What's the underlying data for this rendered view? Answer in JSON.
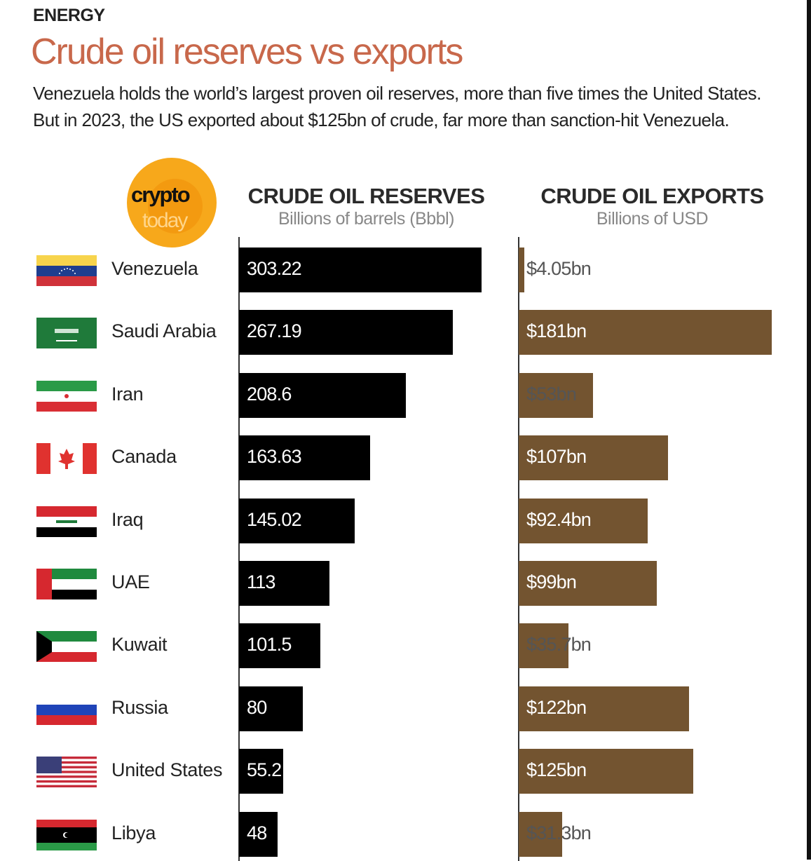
{
  "kicker": "ENERGY",
  "title": "Crude oil reserves vs exports",
  "subtitle": "Venezuela holds the world’s largest proven oil reserves, more than five times the United States. But in 2023, the US exported about $125bn of crude, far more than sanction-hit Venezuela.",
  "logo": {
    "line1": "crypto",
    "line2": "today"
  },
  "colors": {
    "title": "#c8684b",
    "reserves_bar": "#000000",
    "exports_bar": "#735430",
    "logo": "#f7a81b"
  },
  "chart_data": [
    {
      "type": "bar",
      "orientation": "horizontal",
      "title": "CRUDE OIL RESERVES",
      "unit": "Billions of barrels (Bbbl)",
      "categories": [
        "Venezuela",
        "Saudi Arabia",
        "Iran",
        "Canada",
        "Iraq",
        "UAE",
        "Kuwait",
        "Russia",
        "United States",
        "Libya"
      ],
      "values": [
        303.22,
        267.19,
        208.6,
        163.63,
        145.02,
        113,
        101.5,
        80,
        55.2,
        48
      ],
      "labels": [
        "303.22",
        "267.19",
        "208.6",
        "163.63",
        "145.02",
        "113",
        "101.5",
        "80",
        "55.2",
        "48"
      ]
    },
    {
      "type": "bar",
      "orientation": "horizontal",
      "title": "CRUDE OIL EXPORTS",
      "unit": "Billions of USD",
      "categories": [
        "Venezuela",
        "Saudi Arabia",
        "Iran",
        "Canada",
        "Iraq",
        "UAE",
        "Kuwait",
        "Russia",
        "United States",
        "Libya"
      ],
      "values": [
        4.05,
        181,
        53,
        107,
        92.4,
        99,
        35.7,
        122,
        125,
        31.3
      ],
      "labels": [
        "$4.05bn",
        "$181bn",
        "$53bn",
        "$107bn",
        "$92.4bn",
        "$99bn",
        "$35.7bn",
        "$122bn",
        "$125bn",
        "$31.3bn"
      ]
    }
  ],
  "flags": [
    "venezuela-flag",
    "saudi-arabia-flag",
    "iran-flag",
    "canada-flag",
    "iraq-flag",
    "uae-flag",
    "kuwait-flag",
    "russia-flag",
    "united-states-flag",
    "libya-flag"
  ]
}
